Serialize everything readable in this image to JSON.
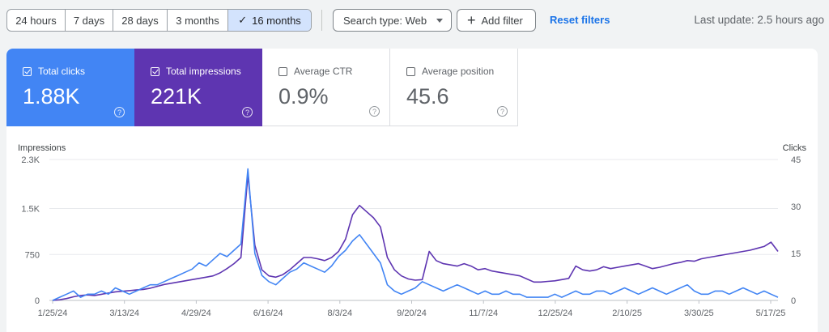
{
  "toolbar": {
    "ranges": [
      {
        "label": "24 hours",
        "active": false
      },
      {
        "label": "7 days",
        "active": false
      },
      {
        "label": "28 days",
        "active": false
      },
      {
        "label": "3 months",
        "active": false
      },
      {
        "label": "16 months",
        "active": true
      }
    ],
    "active_check_icon": "check-icon",
    "search_type_label": "Search type: Web",
    "add_filter_label": "Add filter",
    "reset_label": "Reset filters",
    "last_update": "Last update: 2.5 hours ago"
  },
  "metrics": {
    "clicks": {
      "label": "Total clicks",
      "value": "1.88K",
      "checked": true,
      "color": "#4285f4"
    },
    "impressions": {
      "label": "Total impressions",
      "value": "221K",
      "checked": true,
      "color": "#5e35b1"
    },
    "ctr": {
      "label": "Average CTR",
      "value": "0.9%",
      "checked": false
    },
    "position": {
      "label": "Average position",
      "value": "45.6",
      "checked": false
    },
    "help_glyph": "?"
  },
  "chart_data": {
    "type": "line",
    "left_axis_title": "Impressions",
    "right_axis_title": "Clicks",
    "left_ticks": [
      {
        "value": 2300,
        "label": "2.3K"
      },
      {
        "value": 1500,
        "label": "1.5K"
      },
      {
        "value": 750,
        "label": "750"
      },
      {
        "value": 0,
        "label": "0"
      }
    ],
    "right_ticks": [
      {
        "value": 45,
        "label": "45"
      },
      {
        "value": 30,
        "label": "30"
      },
      {
        "value": 15,
        "label": "15"
      },
      {
        "value": 0,
        "label": "0"
      }
    ],
    "x_tick_labels": [
      "1/25/24",
      "3/13/24",
      "4/29/24",
      "6/16/24",
      "8/3/24",
      "9/20/24",
      "11/7/24",
      "12/25/24",
      "2/10/25",
      "3/30/25",
      "5/17/25"
    ],
    "grid": true,
    "series": [
      {
        "name": "Impressions",
        "axis": "left",
        "color": "#5e35b1",
        "values": [
          0,
          10,
          30,
          60,
          80,
          90,
          80,
          100,
          120,
          140,
          150,
          160,
          170,
          180,
          200,
          230,
          260,
          280,
          300,
          320,
          340,
          360,
          380,
          400,
          450,
          520,
          600,
          700,
          2050,
          900,
          500,
          400,
          380,
          420,
          500,
          600,
          700,
          700,
          680,
          650,
          700,
          800,
          1000,
          1400,
          1550,
          1450,
          1350,
          1200,
          700,
          500,
          400,
          350,
          330,
          340,
          800,
          650,
          600,
          580,
          560,
          600,
          560,
          500,
          520,
          480,
          460,
          440,
          420,
          400,
          350,
          300,
          300,
          310,
          320,
          340,
          360,
          560,
          500,
          480,
          500,
          550,
          520,
          540,
          560,
          580,
          600,
          560,
          520,
          540,
          570,
          600,
          620,
          650,
          640,
          680,
          700,
          720,
          740,
          760,
          780,
          800,
          820,
          850,
          880,
          950,
          800
        ]
      },
      {
        "name": "Clicks",
        "axis": "right",
        "color": "#4285f4",
        "values": [
          0,
          1,
          2,
          3,
          1,
          2,
          2,
          3,
          2,
          4,
          3,
          2,
          3,
          4,
          5,
          5,
          6,
          7,
          8,
          9,
          10,
          12,
          11,
          13,
          15,
          14,
          16,
          18,
          42,
          15,
          8,
          6,
          5,
          7,
          9,
          10,
          12,
          11,
          10,
          9,
          11,
          14,
          16,
          19,
          21,
          18,
          15,
          12,
          5,
          3,
          2,
          3,
          4,
          6,
          5,
          4,
          3,
          4,
          5,
          4,
          3,
          2,
          3,
          2,
          2,
          3,
          2,
          2,
          1,
          1,
          1,
          1,
          2,
          1,
          2,
          3,
          2,
          2,
          3,
          3,
          2,
          3,
          4,
          3,
          2,
          3,
          4,
          3,
          2,
          3,
          4,
          5,
          3,
          2,
          2,
          3,
          3,
          2,
          3,
          4,
          3,
          2,
          3,
          2,
          1
        ]
      }
    ]
  }
}
